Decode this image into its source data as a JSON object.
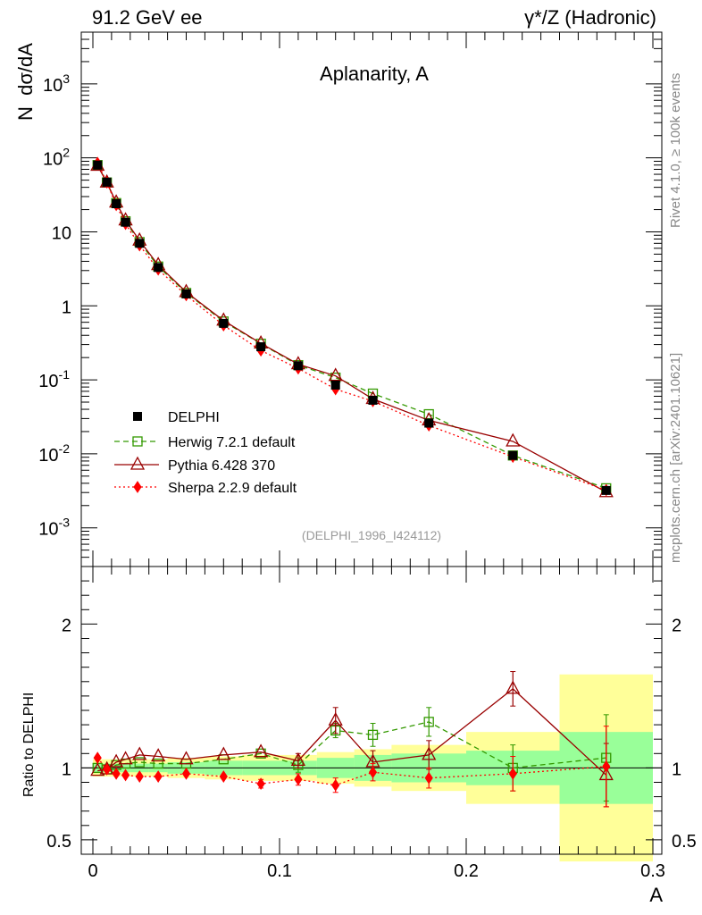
{
  "header": {
    "left": "91.2 GeV ee",
    "right": "γ*/Z (Hadronic)"
  },
  "side_text": {
    "top": "Rivet 4.1.0, ≥ 100k events",
    "bottom": "mcplots.cern.ch [arXiv:2401.10621]"
  },
  "chart_data": {
    "type": "line",
    "title": "Aplanarity, A",
    "ylabel": "N  dσ/dA",
    "ratio_ylabel": "Ratio to DELPHI",
    "xlabel": "A",
    "watermark": "(DELPHI_1996_I424112)",
    "xlim": [
      0,
      0.3
    ],
    "ylim": [
      0.0003,
      5000
    ],
    "ratio_ylim": [
      0.4,
      2.4
    ],
    "yscale": "log",
    "x_ticks": [
      {
        "v": 0,
        "label": "0"
      },
      {
        "v": 0.1,
        "label": "0.1"
      },
      {
        "v": 0.2,
        "label": "0.2"
      },
      {
        "v": 0.3,
        "label": "0.3"
      }
    ],
    "y_ticks": [
      {
        "v": 0.001,
        "base": "10",
        "exp": "-3"
      },
      {
        "v": 0.01,
        "base": "10",
        "exp": "-2"
      },
      {
        "v": 0.1,
        "base": "10",
        "exp": "-1"
      },
      {
        "v": 1,
        "base": "1",
        "exp": ""
      },
      {
        "v": 10,
        "base": "10",
        "exp": ""
      },
      {
        "v": 100,
        "base": "10",
        "exp": "2"
      },
      {
        "v": 1000,
        "base": "10",
        "exp": "3"
      }
    ],
    "ratio_ticks": [
      {
        "v": 0.5,
        "label": "0.5"
      },
      {
        "v": 1,
        "label": "1"
      },
      {
        "v": 2,
        "label": "2"
      }
    ],
    "bin_edges": [
      0,
      0.005,
      0.01,
      0.015,
      0.02,
      0.03,
      0.04,
      0.06,
      0.08,
      0.1,
      0.12,
      0.14,
      0.16,
      0.2,
      0.25,
      0.3
    ],
    "band_stat": [
      0.03,
      0.03,
      0.03,
      0.03,
      0.03,
      0.03,
      0.04,
      0.05,
      0.05,
      0.05,
      0.07,
      0.09,
      0.1,
      0.12,
      0.25
    ],
    "band_tot": [
      0.06,
      0.06,
      0.06,
      0.06,
      0.06,
      0.06,
      0.07,
      0.08,
      0.09,
      0.09,
      0.11,
      0.13,
      0.16,
      0.25,
      0.65
    ],
    "x": [
      0.0025,
      0.0075,
      0.0125,
      0.0175,
      0.025,
      0.035,
      0.05,
      0.07,
      0.09,
      0.11,
      0.13,
      0.15,
      0.18,
      0.225,
      0.275
    ],
    "series": [
      {
        "name": "DELPHI",
        "values": [
          80,
          47,
          24,
          13.5,
          7,
          3.3,
          1.45,
          0.58,
          0.28,
          0.155,
          0.085,
          0.053,
          0.026,
          0.0095,
          0.0032
        ]
      },
      {
        "name": "Herwig 7.2.1 default",
        "color": "#339900",
        "ratio": [
          1.0,
          0.99,
          1.02,
          1.03,
          1.04,
          1.03,
          1.03,
          1.06,
          1.1,
          1.02,
          1.26,
          1.23,
          1.32,
          1.0,
          1.07
        ],
        "ratio_err": [
          0,
          0,
          0,
          0,
          0,
          0,
          0,
          0,
          0,
          0.05,
          0.05,
          0.08,
          0.1,
          0.16,
          0.3
        ]
      },
      {
        "name": "Pythia 6.428 370",
        "color": "#990000",
        "ratio": [
          0.98,
          0.99,
          1.04,
          1.06,
          1.09,
          1.08,
          1.06,
          1.09,
          1.11,
          1.05,
          1.33,
          1.04,
          1.09,
          1.55,
          0.95
        ],
        "ratio_err": [
          0,
          0,
          0,
          0,
          0,
          0,
          0,
          0,
          0,
          0.05,
          0.09,
          0.08,
          0.1,
          0.12,
          0.22
        ]
      },
      {
        "name": "Sherpa 2.2.9 default",
        "color": "#ff0000",
        "ratio": [
          1.07,
          0.99,
          0.96,
          0.95,
          0.94,
          0.94,
          0.96,
          0.94,
          0.89,
          0.92,
          0.88,
          0.97,
          0.93,
          0.96,
          1.01
        ],
        "ratio_err": [
          0,
          0,
          0,
          0,
          0,
          0,
          0,
          0,
          0.03,
          0.04,
          0.05,
          0.06,
          0.07,
          0.12,
          0.28
        ]
      }
    ]
  }
}
